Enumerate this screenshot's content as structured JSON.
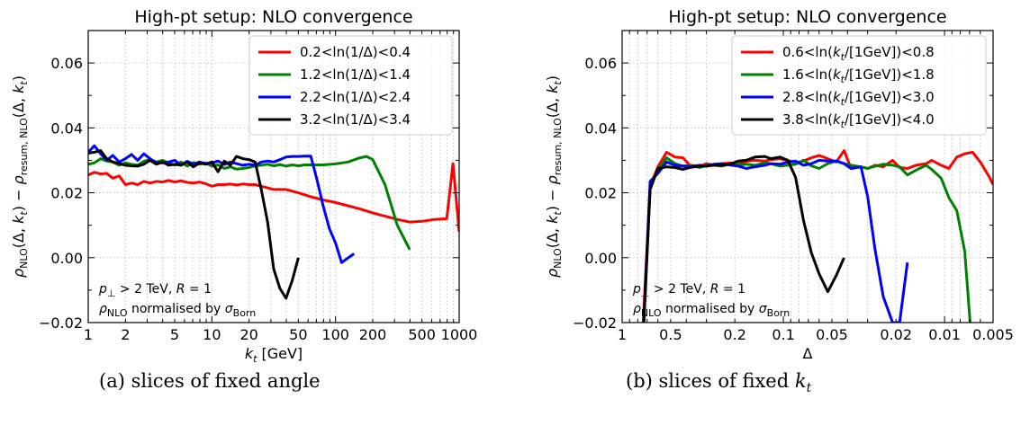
{
  "chart_data": [
    {
      "type": "line",
      "panel": "a",
      "title": "High-pt setup: NLO convergence",
      "xlabel": "k_t [GeV]",
      "ylabel": "ρ_NLO(Δ, k_t) − ρ_resum, NLO(Δ, k_t)",
      "xscale": "log",
      "xlim": [
        1,
        1000
      ],
      "ylim": [
        -0.02,
        0.07
      ],
      "yticks": [
        -0.02,
        0.0,
        0.02,
        0.04,
        0.06
      ],
      "ytick_labels": [
        "−0.02",
        "0.00",
        "0.02",
        "0.04",
        "0.06"
      ],
      "xticks": [
        1,
        2,
        5,
        10,
        20,
        50,
        100,
        200,
        500,
        1000
      ],
      "xtick_labels": [
        "1",
        "2",
        "5",
        "10",
        "20",
        "50",
        "100",
        "200",
        "500",
        "1000"
      ],
      "grid": true,
      "legend_position": "top-right",
      "annotation_lines": [
        "p⊥ > 2 TeV, R = 1",
        "ρNLO normalised by σBorn"
      ],
      "series": [
        {
          "name": "0.2<ln(1/Δ)<0.4",
          "color": "#ff0000",
          "x": [
            1,
            1.12,
            1.26,
            1.41,
            1.58,
            1.78,
            2,
            2.24,
            2.51,
            2.82,
            3.16,
            3.55,
            3.98,
            4.47,
            5.01,
            5.62,
            6.31,
            7.08,
            7.94,
            8.91,
            10,
            11.2,
            12.6,
            14.1,
            15.8,
            17.8,
            20,
            22.4,
            25.1,
            28.2,
            31.6,
            39.8,
            50.1,
            63.1,
            79.4,
            100,
            126,
            158,
            200,
            251,
            316,
            398,
            501,
            631,
            794,
            891,
            1000
          ],
          "y": [
            0.0255,
            0.0263,
            0.0258,
            0.026,
            0.0245,
            0.0252,
            0.0225,
            0.023,
            0.0225,
            0.0235,
            0.023,
            0.0235,
            0.0233,
            0.0238,
            0.0233,
            0.0237,
            0.0232,
            0.023,
            0.0233,
            0.0228,
            0.022,
            0.0225,
            0.0225,
            0.0227,
            0.0224,
            0.0227,
            0.0225,
            0.0225,
            0.022,
            0.0215,
            0.021,
            0.021,
            0.02,
            0.0188,
            0.0178,
            0.017,
            0.016,
            0.015,
            0.0138,
            0.0128,
            0.0118,
            0.011,
            0.0112,
            0.0118,
            0.012,
            0.029,
            0.008
          ]
        },
        {
          "name": "1.2<ln(1/Δ)<1.4",
          "color": "#008000",
          "x": [
            1,
            1.12,
            1.26,
            1.41,
            1.58,
            1.78,
            2,
            2.24,
            2.51,
            2.82,
            3.16,
            3.55,
            3.98,
            4.47,
            5.01,
            5.62,
            6.31,
            7.08,
            7.94,
            8.91,
            10,
            11.2,
            12.6,
            14.1,
            15.8,
            17.8,
            20,
            22.4,
            25.1,
            28.2,
            31.6,
            35.5,
            39.8,
            44.7,
            50.1,
            56.2,
            63.1,
            79.4,
            100,
            126,
            158,
            178,
            200,
            251,
            316,
            398
          ],
          "y": [
            0.0288,
            0.0292,
            0.0305,
            0.0298,
            0.0295,
            0.0285,
            0.0292,
            0.0288,
            0.0285,
            0.0297,
            0.0303,
            0.0295,
            0.03,
            0.0292,
            0.0285,
            0.0295,
            0.0282,
            0.0293,
            0.0288,
            0.0292,
            0.0282,
            0.0286,
            0.0275,
            0.028,
            0.0273,
            0.0275,
            0.0278,
            0.0283,
            0.0285,
            0.0288,
            0.0283,
            0.0287,
            0.0282,
            0.0286,
            0.0283,
            0.0286,
            0.0286,
            0.0286,
            0.0289,
            0.0295,
            0.0308,
            0.0312,
            0.0302,
            0.0225,
            0.01,
            0.0025
          ]
        },
        {
          "name": "2.2<ln(1/Δ)<2.4",
          "color": "#0000ff",
          "x": [
            1,
            1.12,
            1.26,
            1.41,
            1.58,
            1.78,
            2,
            2.24,
            2.51,
            2.82,
            3.16,
            3.55,
            3.98,
            4.47,
            5.01,
            5.62,
            6.31,
            7.08,
            7.94,
            8.91,
            10,
            11.2,
            12.6,
            14.1,
            15.8,
            17.8,
            20,
            22.4,
            25.1,
            28.2,
            31.6,
            35.5,
            39.8,
            44.7,
            50.1,
            56.2,
            63.1,
            70.8,
            79.4,
            89.1,
            100,
            112,
            141
          ],
          "y": [
            0.0325,
            0.0345,
            0.032,
            0.03,
            0.0315,
            0.0295,
            0.0305,
            0.0318,
            0.03,
            0.032,
            0.0305,
            0.0293,
            0.0292,
            0.0295,
            0.03,
            0.0285,
            0.0297,
            0.0288,
            0.0295,
            0.029,
            0.0292,
            0.0298,
            0.0287,
            0.0295,
            0.029,
            0.0285,
            0.0288,
            0.0285,
            0.0295,
            0.0298,
            0.0295,
            0.0302,
            0.031,
            0.0312,
            0.0312,
            0.0313,
            0.0313,
            0.024,
            0.016,
            0.009,
            0.0045,
            -0.0015,
            0.0012
          ]
        },
        {
          "name": "3.2<ln(1/Δ)<3.4",
          "color": "#000000",
          "x": [
            1,
            1.12,
            1.26,
            1.41,
            1.58,
            1.78,
            2,
            2.24,
            2.51,
            2.82,
            3.16,
            3.55,
            3.98,
            4.47,
            5.01,
            5.62,
            6.31,
            7.08,
            7.94,
            8.91,
            10,
            11.2,
            12.6,
            14.1,
            15.8,
            17.8,
            20,
            22.4,
            25.1,
            28.2,
            31.6,
            35.5,
            39.8,
            44.7,
            50.1
          ],
          "y": [
            0.0322,
            0.0325,
            0.033,
            0.0305,
            0.0295,
            0.029,
            0.0285,
            0.0283,
            0.0282,
            0.0288,
            0.03,
            0.0288,
            0.0295,
            0.0285,
            0.0288,
            0.0285,
            0.0295,
            0.028,
            0.0292,
            0.0288,
            0.0295,
            0.0265,
            0.0298,
            0.0285,
            0.0312,
            0.0305,
            0.0302,
            0.0295,
            0.021,
            0.011,
            -0.0035,
            -0.0095,
            -0.0125,
            -0.007,
            0.0
          ]
        }
      ]
    },
    {
      "type": "line",
      "panel": "b",
      "title": "High-pt setup: NLO convergence",
      "xlabel": "Δ",
      "ylabel": "ρ_NLO(Δ, k_t) − ρ_resum, NLO(Δ, k_t)",
      "xscale": "log",
      "x_reversed": true,
      "xlim": [
        1,
        0.005
      ],
      "ylim": [
        -0.02,
        0.07
      ],
      "yticks": [
        -0.02,
        0.0,
        0.02,
        0.04,
        0.06
      ],
      "ytick_labels": [
        "−0.02",
        "0.00",
        "0.02",
        "0.04",
        "0.06"
      ],
      "xticks": [
        1,
        0.5,
        0.2,
        0.1,
        0.05,
        0.02,
        0.01,
        0.005
      ],
      "xtick_labels": [
        "1",
        "0.5",
        "0.2",
        "0.1",
        "0.05",
        "0.02",
        "0.01",
        "0.005"
      ],
      "grid": true,
      "legend_position": "top-right",
      "annotation_lines": [
        "p⊥ > 2 TeV, R = 1",
        "ρNLO normalised by σBorn"
      ],
      "series": [
        {
          "name": "0.6<ln(k_t/[1GeV])<0.8",
          "color": "#ff0000",
          "x": [
            0.75,
            0.67,
            0.6,
            0.53,
            0.47,
            0.42,
            0.38,
            0.33,
            0.3,
            0.27,
            0.24,
            0.21,
            0.19,
            0.17,
            0.15,
            0.13,
            0.12,
            0.105,
            0.094,
            0.084,
            0.075,
            0.067,
            0.06,
            0.053,
            0.047,
            0.042,
            0.038,
            0.033,
            0.03,
            0.027,
            0.024,
            0.021,
            0.019,
            0.017,
            0.015,
            0.013,
            0.012,
            0.0105,
            0.0094,
            0.0084,
            0.0075,
            0.0067,
            0.006,
            0.0053,
            0.005
          ],
          "y": [
            -0.025,
            0.022,
            0.028,
            0.0325,
            0.031,
            0.0308,
            0.0285,
            0.0282,
            0.029,
            0.0285,
            0.029,
            0.0292,
            0.0288,
            0.0297,
            0.03,
            0.0298,
            0.0302,
            0.0305,
            0.03,
            0.0292,
            0.0298,
            0.0308,
            0.0315,
            0.0305,
            0.0295,
            0.033,
            0.0275,
            0.028,
            0.0275,
            0.0285,
            0.028,
            0.03,
            0.0278,
            0.0275,
            0.0285,
            0.029,
            0.03,
            0.0285,
            0.0275,
            0.031,
            0.032,
            0.0325,
            0.0295,
            0.025,
            0.0225
          ]
        },
        {
          "name": "1.6<ln(k_t/[1GeV])<1.8",
          "color": "#008000",
          "x": [
            0.75,
            0.67,
            0.6,
            0.53,
            0.47,
            0.42,
            0.38,
            0.33,
            0.3,
            0.27,
            0.24,
            0.21,
            0.19,
            0.17,
            0.15,
            0.13,
            0.12,
            0.105,
            0.094,
            0.084,
            0.075,
            0.067,
            0.06,
            0.053,
            0.047,
            0.042,
            0.038,
            0.033,
            0.03,
            0.027,
            0.024,
            0.021,
            0.019,
            0.017,
            0.015,
            0.013,
            0.012,
            0.0105,
            0.0094,
            0.0084,
            0.0075,
            0.0067
          ],
          "y": [
            -0.03,
            0.022,
            0.027,
            0.0308,
            0.029,
            0.0282,
            0.0285,
            0.0278,
            0.0285,
            0.0285,
            0.0282,
            0.029,
            0.0285,
            0.0288,
            0.0285,
            0.0292,
            0.029,
            0.0282,
            0.0285,
            0.0288,
            0.03,
            0.0283,
            0.0275,
            0.029,
            0.0298,
            0.029,
            0.0285,
            0.028,
            0.0275,
            0.0282,
            0.0288,
            0.0285,
            0.028,
            0.0255,
            0.027,
            0.0285,
            0.0272,
            0.0245,
            0.0185,
            0.0145,
            0.002,
            -0.03
          ]
        },
        {
          "name": "2.8<ln(k_t/[1GeV])<3.0",
          "color": "#0000ff",
          "x": [
            0.75,
            0.67,
            0.6,
            0.53,
            0.47,
            0.42,
            0.38,
            0.33,
            0.3,
            0.27,
            0.24,
            0.21,
            0.19,
            0.17,
            0.15,
            0.13,
            0.12,
            0.105,
            0.094,
            0.084,
            0.075,
            0.067,
            0.06,
            0.053,
            0.047,
            0.042,
            0.038,
            0.033,
            0.03,
            0.027,
            0.024,
            0.021,
            0.019,
            0.017
          ],
          "y": [
            -0.03,
            0.0235,
            0.026,
            0.0295,
            0.0285,
            0.0282,
            0.028,
            0.0285,
            0.0282,
            0.0288,
            0.029,
            0.0285,
            0.0282,
            0.0275,
            0.028,
            0.0285,
            0.029,
            0.0288,
            0.0295,
            0.0298,
            0.0285,
            0.029,
            0.03,
            0.0298,
            0.0298,
            0.029,
            0.0275,
            0.028,
            0.0188,
            0.0025,
            -0.012,
            -0.02,
            -0.02,
            -0.0015
          ]
        },
        {
          "name": "3.8<ln(k_t/[1GeV])<4.0",
          "color": "#000000",
          "x": [
            0.75,
            0.67,
            0.6,
            0.53,
            0.47,
            0.42,
            0.38,
            0.33,
            0.3,
            0.27,
            0.24,
            0.21,
            0.19,
            0.17,
            0.15,
            0.13,
            0.12,
            0.105,
            0.094,
            0.084,
            0.075,
            0.067,
            0.06,
            0.053,
            0.047,
            0.042
          ],
          "y": [
            -0.03,
            0.021,
            0.0275,
            0.028,
            0.0278,
            0.0272,
            0.0278,
            0.0282,
            0.0282,
            0.0285,
            0.0285,
            0.029,
            0.0298,
            0.03,
            0.031,
            0.0312,
            0.0305,
            0.031,
            0.03,
            0.0248,
            0.0115,
            0.0015,
            -0.005,
            -0.0105,
            -0.0055,
            0.0
          ]
        }
      ]
    }
  ],
  "captions": {
    "a": "(a) slices of fixed angle",
    "b": "(b) slices of fixed k_t"
  }
}
